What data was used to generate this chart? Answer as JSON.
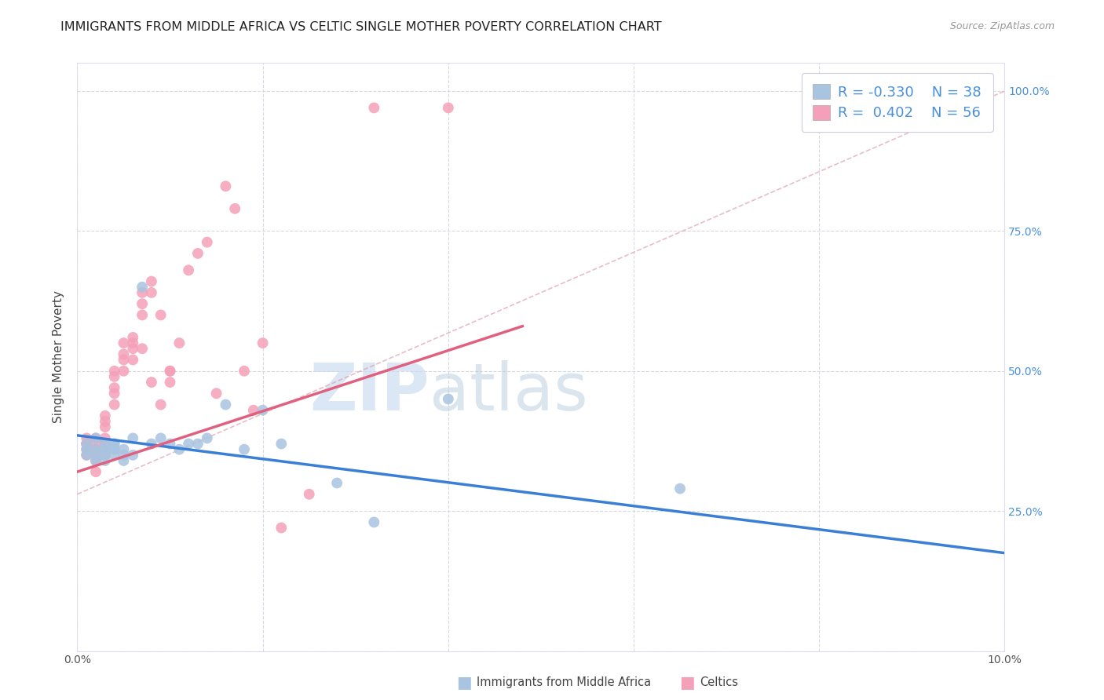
{
  "title": "IMMIGRANTS FROM MIDDLE AFRICA VS CELTIC SINGLE MOTHER POVERTY CORRELATION CHART",
  "source_text": "Source: ZipAtlas.com",
  "ylabel": "Single Mother Poverty",
  "xlim": [
    0.0,
    0.1
  ],
  "ylim": [
    0.0,
    1.05
  ],
  "blue_color": "#a8c4e0",
  "pink_color": "#f4a0b8",
  "blue_line_color": "#3a7fd5",
  "pink_line_color": "#e06080",
  "diag_line_color": "#e0b0b8",
  "legend_text_color": "#4a90d9",
  "watermark_color": "#ccddf0",
  "R_blue": -0.33,
  "N_blue": 38,
  "R_pink": 0.402,
  "N_pink": 56,
  "blue_trend_x0": 0.0,
  "blue_trend_y0": 0.385,
  "blue_trend_x1": 0.1,
  "blue_trend_y1": 0.175,
  "pink_trend_x0": 0.0,
  "pink_trend_y0": 0.32,
  "pink_trend_x1": 0.048,
  "pink_trend_y1": 0.58,
  "blue_scatter_x": [
    0.001,
    0.001,
    0.001,
    0.002,
    0.002,
    0.002,
    0.002,
    0.003,
    0.003,
    0.003,
    0.003,
    0.003,
    0.004,
    0.004,
    0.004,
    0.004,
    0.004,
    0.005,
    0.005,
    0.005,
    0.006,
    0.006,
    0.007,
    0.008,
    0.009,
    0.01,
    0.011,
    0.012,
    0.013,
    0.014,
    0.016,
    0.018,
    0.02,
    0.022,
    0.028,
    0.032,
    0.04,
    0.065
  ],
  "blue_scatter_y": [
    0.37,
    0.36,
    0.35,
    0.38,
    0.36,
    0.35,
    0.34,
    0.37,
    0.36,
    0.36,
    0.35,
    0.34,
    0.37,
    0.37,
    0.36,
    0.36,
    0.35,
    0.36,
    0.35,
    0.34,
    0.38,
    0.35,
    0.65,
    0.37,
    0.38,
    0.37,
    0.36,
    0.37,
    0.37,
    0.38,
    0.44,
    0.36,
    0.43,
    0.37,
    0.3,
    0.23,
    0.45,
    0.29
  ],
  "pink_scatter_x": [
    0.001,
    0.001,
    0.001,
    0.001,
    0.001,
    0.002,
    0.002,
    0.002,
    0.002,
    0.002,
    0.002,
    0.003,
    0.003,
    0.003,
    0.003,
    0.003,
    0.003,
    0.004,
    0.004,
    0.004,
    0.004,
    0.004,
    0.005,
    0.005,
    0.005,
    0.005,
    0.006,
    0.006,
    0.006,
    0.006,
    0.007,
    0.007,
    0.007,
    0.007,
    0.008,
    0.008,
    0.008,
    0.009,
    0.009,
    0.01,
    0.01,
    0.01,
    0.011,
    0.012,
    0.013,
    0.014,
    0.015,
    0.016,
    0.017,
    0.018,
    0.019,
    0.02,
    0.022,
    0.025,
    0.032,
    0.04
  ],
  "pink_scatter_y": [
    0.38,
    0.37,
    0.37,
    0.36,
    0.35,
    0.38,
    0.37,
    0.36,
    0.35,
    0.34,
    0.32,
    0.42,
    0.41,
    0.4,
    0.38,
    0.37,
    0.35,
    0.5,
    0.49,
    0.47,
    0.46,
    0.44,
    0.55,
    0.53,
    0.52,
    0.5,
    0.56,
    0.55,
    0.54,
    0.52,
    0.64,
    0.62,
    0.6,
    0.54,
    0.66,
    0.64,
    0.48,
    0.6,
    0.44,
    0.5,
    0.5,
    0.48,
    0.55,
    0.68,
    0.71,
    0.73,
    0.46,
    0.83,
    0.79,
    0.5,
    0.43,
    0.55,
    0.22,
    0.28,
    0.97,
    0.97
  ]
}
